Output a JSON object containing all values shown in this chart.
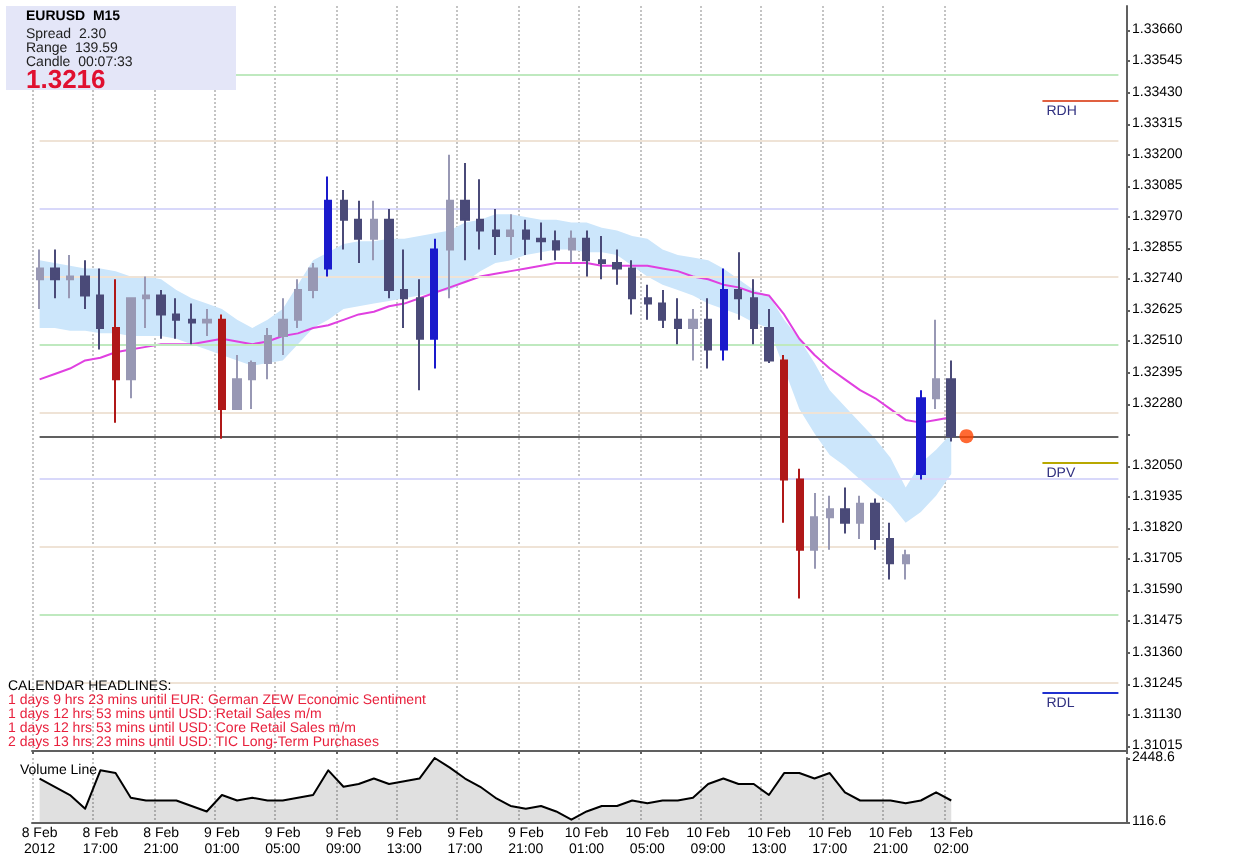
{
  "chart_data": [
    {
      "type": "candlestick",
      "title": "EURUSD  M15",
      "categories": [
        "8 Feb 2012",
        null,
        null,
        null,
        "8 Feb 17:00",
        null,
        null,
        null,
        "8 Feb 21:00",
        null,
        null,
        null,
        "9 Feb 01:00",
        null,
        null,
        null,
        "9 Feb 05:00",
        null,
        null,
        null,
        "9 Feb 09:00",
        null,
        null,
        null,
        "9 Feb 13:00",
        null,
        null,
        null,
        "9 Feb 17:00",
        null,
        null,
        null,
        "9 Feb 21:00",
        null,
        null,
        null,
        "10 Feb 01:00",
        null,
        null,
        null,
        "10 Feb 05:00",
        null,
        null,
        null,
        "10 Feb 09:00",
        null,
        null,
        null,
        "10 Feb 13:00",
        null,
        null,
        null,
        "10 Feb 17:00",
        null,
        null,
        null,
        "10 Feb 21:00",
        null,
        null,
        null,
        "13 Feb 02:00",
        null,
        null,
        null,
        null,
        null,
        null,
        null,
        null,
        null,
        null,
        null
      ],
      "ohlc": [
        [
          1.3274,
          1.3285,
          1.3263,
          1.3278
        ],
        [
          1.3278,
          1.3285,
          1.3267,
          1.3274
        ],
        [
          1.3274,
          1.3283,
          1.3267,
          1.3275
        ],
        [
          1.3275,
          1.3281,
          1.3263,
          1.3268
        ],
        [
          1.3268,
          1.3278,
          1.3248,
          1.3256
        ],
        [
          1.3256,
          1.3274,
          1.3221,
          1.3237
        ],
        [
          1.3237,
          1.3267,
          1.323,
          1.3267
        ],
        [
          1.3267,
          1.3275,
          1.3256,
          1.3268
        ],
        [
          1.3268,
          1.327,
          1.3252,
          1.3261
        ],
        [
          1.3261,
          1.3267,
          1.3252,
          1.3259
        ],
        [
          1.3259,
          1.3265,
          1.325,
          1.3258
        ],
        [
          1.3258,
          1.3263,
          1.3253,
          1.3259
        ],
        [
          1.3259,
          1.3261,
          1.3215,
          1.3226
        ],
        [
          1.3226,
          1.3246,
          1.3226,
          1.3237
        ],
        [
          1.3237,
          1.3244,
          1.3226,
          1.3243
        ],
        [
          1.3243,
          1.3256,
          1.3237,
          1.3253
        ],
        [
          1.3253,
          1.3267,
          1.3246,
          1.3259
        ],
        [
          1.3259,
          1.3274,
          1.3256,
          1.327
        ],
        [
          1.327,
          1.328,
          1.3267,
          1.3278
        ],
        [
          1.3278,
          1.3312,
          1.3275,
          1.3303
        ],
        [
          1.3303,
          1.3307,
          1.3285,
          1.3296
        ],
        [
          1.3296,
          1.3303,
          1.328,
          1.3289
        ],
        [
          1.3289,
          1.3303,
          1.3281,
          1.3296
        ],
        [
          1.3296,
          1.33,
          1.3267,
          1.327
        ],
        [
          1.327,
          1.3285,
          1.3256,
          1.3267
        ],
        [
          1.3267,
          1.3274,
          1.3233,
          1.3252
        ],
        [
          1.3252,
          1.3289,
          1.3241,
          1.3285
        ],
        [
          1.3285,
          1.332,
          1.3267,
          1.3303
        ],
        [
          1.3303,
          1.3317,
          1.3281,
          1.3296
        ],
        [
          1.3296,
          1.3311,
          1.3285,
          1.3292
        ],
        [
          1.3292,
          1.33,
          1.3283,
          1.329
        ],
        [
          1.329,
          1.3298,
          1.3283,
          1.3292
        ],
        [
          1.3292,
          1.3296,
          1.3283,
          1.3289
        ],
        [
          1.3289,
          1.3295,
          1.3281,
          1.3288
        ],
        [
          1.3288,
          1.3292,
          1.3281,
          1.3285
        ],
        [
          1.3285,
          1.3292,
          1.328,
          1.3289
        ],
        [
          1.3289,
          1.3292,
          1.3275,
          1.3281
        ],
        [
          1.3281,
          1.329,
          1.3274,
          1.328
        ],
        [
          1.328,
          1.3285,
          1.3272,
          1.3278
        ],
        [
          1.3278,
          1.3281,
          1.3261,
          1.3267
        ],
        [
          1.3267,
          1.3272,
          1.3259,
          1.3265
        ],
        [
          1.3265,
          1.327,
          1.3256,
          1.3259
        ],
        [
          1.3259,
          1.3267,
          1.325,
          1.3256
        ],
        [
          1.3256,
          1.3263,
          1.3244,
          1.3259
        ],
        [
          1.3259,
          1.3267,
          1.3241,
          1.3248
        ],
        [
          1.3248,
          1.3278,
          1.3244,
          1.327
        ],
        [
          1.327,
          1.3284,
          1.3259,
          1.3267
        ],
        [
          1.3267,
          1.3274,
          1.325,
          1.3256
        ],
        [
          1.3256,
          1.3263,
          1.3243,
          1.3244
        ],
        [
          1.3244,
          1.3246,
          1.3184,
          1.32
        ],
        [
          1.32,
          1.3204,
          1.3156,
          1.3174
        ],
        [
          1.3174,
          1.3195,
          1.3167,
          1.3186
        ],
        [
          1.3186,
          1.3194,
          1.3174,
          1.3189
        ],
        [
          1.3189,
          1.3197,
          1.318,
          1.3184
        ],
        [
          1.3184,
          1.3194,
          1.3178,
          1.3191
        ],
        [
          1.3191,
          1.3193,
          1.3174,
          1.3178
        ],
        [
          1.3178,
          1.3184,
          1.3163,
          1.3169
        ],
        [
          1.3169,
          1.3174,
          1.3163,
          1.3172
        ],
        [
          1.3202,
          1.3233,
          1.32,
          1.323
        ],
        [
          1.323,
          1.3259,
          1.3226,
          1.3237
        ],
        [
          1.3237,
          1.3244,
          1.3214,
          1.3216
        ],
        null,
        null,
        null,
        null,
        null,
        null,
        null,
        null,
        null,
        null,
        null
      ],
      "colors": [
        "#9898b4",
        "#4a4a78",
        "#9898b4",
        "#4a4a78",
        "#4a4a78",
        "#b01818",
        "#9898b4",
        "#9898b4",
        "#4a4a78",
        "#4a4a78",
        "#4a4a78",
        "#9898b4",
        "#b01818",
        "#9898b4",
        "#9898b4",
        "#9898b4",
        "#9898b4",
        "#9898b4",
        "#9898b4",
        "#1a1acc",
        "#4a4a78",
        "#4a4a78",
        "#9898b4",
        "#4a4a78",
        "#4a4a78",
        "#4a4a78",
        "#1a1acc",
        "#9898b4",
        "#4a4a78",
        "#4a4a78",
        "#4a4a78",
        "#9898b4",
        "#4a4a78",
        "#4a4a78",
        "#4a4a78",
        "#9898b4",
        "#4a4a78",
        "#4a4a78",
        "#4a4a78",
        "#4a4a78",
        "#4a4a78",
        "#4a4a78",
        "#4a4a78",
        "#9898b4",
        "#4a4a78",
        "#1a1acc",
        "#4a4a78",
        "#4a4a78",
        "#4a4a78",
        "#b01818",
        "#b01818",
        "#9898b4",
        "#9898b4",
        "#4a4a78",
        "#9898b4",
        "#4a4a78",
        "#4a4a78",
        "#9898b4",
        "#1a1acc",
        "#9898b4",
        "#4a4a78",
        null,
        null,
        null,
        null,
        null,
        null,
        null,
        null,
        null,
        null,
        null
      ],
      "series": [
        {
          "type": "line",
          "color": "#e040e0",
          "marker": "none",
          "values": [
            1.3237,
            1.3239,
            1.3241,
            1.3244,
            1.3245,
            1.3247,
            1.3248,
            1.3249,
            1.325,
            1.325,
            1.325,
            1.3251,
            1.3252,
            1.3251,
            1.325,
            1.3251,
            1.3253,
            1.3254,
            1.3256,
            1.3257,
            1.3259,
            1.3261,
            1.3262,
            1.3264,
            1.3265,
            1.3267,
            1.3269,
            1.3271,
            1.3273,
            1.3275,
            1.3276,
            1.3277,
            1.3278,
            1.3279,
            1.328,
            1.328,
            1.328,
            1.3279,
            1.3279,
            1.3279,
            1.3279,
            1.3278,
            1.3277,
            1.3275,
            1.3274,
            1.3272,
            1.3271,
            1.3269,
            1.3268,
            1.3261,
            1.3252,
            1.3246,
            1.3241,
            1.3237,
            1.3233,
            1.323,
            1.3226,
            1.3222,
            1.3221,
            1.3222,
            1.3223,
            null,
            null,
            null,
            null,
            null,
            null,
            null,
            null,
            null,
            null,
            null
          ]
        },
        {
          "type": "line",
          "color": "#cce6fb",
          "values": [
            null,
            null,
            null,
            null,
            null,
            null,
            null,
            null,
            null,
            null,
            null,
            null,
            null,
            null,
            null,
            null,
            null,
            null,
            null,
            null,
            null,
            null,
            null,
            null,
            null,
            null,
            null,
            null,
            null,
            null,
            null,
            null,
            null,
            null,
            null,
            null,
            null,
            null,
            null,
            null,
            null,
            null,
            null,
            null,
            null,
            null,
            null,
            null,
            null,
            null,
            null,
            null,
            null,
            null,
            null,
            null,
            null,
            null,
            null,
            null,
            null,
            null,
            null,
            null,
            null,
            null,
            null,
            null,
            null,
            null,
            null,
            null
          ],
          "lower": [
            1.3256,
            1.3256,
            1.3255,
            1.3255,
            1.3254,
            1.3254,
            1.3253,
            1.3253,
            1.3253,
            1.3252,
            1.325,
            1.3248,
            1.3246,
            1.3244,
            1.3242,
            1.3243,
            1.3244,
            1.325,
            1.3256,
            1.3259,
            1.3263,
            1.3264,
            1.3265,
            1.3266,
            1.3267,
            1.3268,
            1.3269,
            1.327,
            1.3273,
            1.3277,
            1.328,
            1.3281,
            1.3283,
            1.3284,
            1.3285,
            1.3285,
            1.3284,
            1.3284,
            1.3283,
            1.3279,
            1.3275,
            1.3272,
            1.327,
            1.3268,
            1.3265,
            1.3263,
            1.3261,
            1.3258,
            1.3256,
            1.3241,
            1.3226,
            1.3217,
            1.3209,
            1.3205,
            1.32,
            1.3195,
            1.3191,
            1.3184,
            1.3188,
            1.3194,
            1.3202,
            null,
            null,
            null,
            null,
            null,
            null,
            null,
            null,
            null,
            null,
            null
          ],
          "upper": [
            1.3281,
            1.328,
            1.3279,
            1.3278,
            1.3278,
            1.3277,
            1.3275,
            1.3275,
            1.3274,
            1.327,
            1.3267,
            1.3265,
            1.3263,
            1.3259,
            1.3256,
            1.3259,
            1.3263,
            1.3272,
            1.3281,
            1.3284,
            1.3287,
            1.3288,
            1.3288,
            1.3289,
            1.3289,
            1.329,
            1.3291,
            1.3292,
            1.3295,
            1.3296,
            1.3298,
            1.3298,
            1.3297,
            1.3296,
            1.3296,
            1.3295,
            1.3295,
            1.3293,
            1.3292,
            1.329,
            1.3289,
            1.3285,
            1.3283,
            1.3282,
            1.3281,
            1.3278,
            1.3274,
            1.327,
            1.3268,
            1.3259,
            1.3252,
            1.3243,
            1.3233,
            1.3227,
            1.3221,
            1.3215,
            1.3208,
            1.3197,
            1.3206,
            1.3211,
            1.3217,
            null,
            null,
            null,
            null,
            null,
            null,
            null,
            null,
            null,
            null,
            null
          ]
        },
        {
          "type": "scatter",
          "color": "#ff4400",
          "marker": "circle",
          "values": [
            null,
            null,
            null,
            null,
            null,
            null,
            null,
            null,
            null,
            null,
            null,
            null,
            null,
            null,
            null,
            null,
            null,
            null,
            null,
            null,
            null,
            null,
            null,
            null,
            null,
            null,
            null,
            null,
            null,
            null,
            null,
            null,
            null,
            null,
            null,
            null,
            null,
            null,
            null,
            null,
            null,
            null,
            null,
            null,
            null,
            null,
            null,
            null,
            null,
            null,
            null,
            null,
            null,
            null,
            null,
            null,
            null,
            null,
            null,
            null,
            null,
            1.3216,
            null,
            null,
            null,
            null,
            null,
            null,
            null,
            null,
            null,
            null
          ]
        }
      ],
      "ylim": [
        1.31,
        1.3375
      ],
      "yticks": [
        1.31015,
        {
          "value": 1.3113,
          "label": "1.31130"
        },
        1.31245,
        {
          "value": 1.3136,
          "label": "1.31360"
        },
        1.31475,
        {
          "value": 1.3159,
          "label": "1.31590"
        },
        1.31705,
        {
          "value": 1.3182,
          "label": "1.31820"
        },
        1.31935,
        {
          "value": 1.3205,
          "label": "1.32050"
        },
        {
          "value": 1.32165,
          "label": null
        },
        {
          "value": 1.3228,
          "label": "1.32280"
        },
        1.32395,
        {
          "value": 1.3251,
          "label": "1.32510"
        },
        1.32625,
        {
          "value": 1.3274,
          "label": "1.32740"
        },
        1.32855,
        {
          "value": 1.3297,
          "label": "1.32970"
        },
        1.33085,
        {
          "value": 1.332,
          "label": "1.33200"
        },
        1.33315,
        {
          "value": 1.3343,
          "label": "1.33430"
        },
        1.33545,
        {
          "value": 1.3366,
          "label": "1.33660"
        }
      ],
      "grid": "x",
      "ref_lines": [
        {
          "axis": "y",
          "value": 1.335,
          "color": "#bfe9bf"
        },
        {
          "axis": "y",
          "value": 1.3325,
          "color": "#efe3d6"
        },
        {
          "axis": "y",
          "value": 1.33,
          "color": "#d8d8fa"
        },
        {
          "axis": "y",
          "value": 1.3275,
          "color": "#efe3d6"
        },
        {
          "axis": "y",
          "value": 1.325,
          "color": "#bfe9bf"
        },
        {
          "axis": "y",
          "value": 1.3225,
          "color": "#efe3d6"
        },
        {
          "axis": "y",
          "value": 1.32,
          "color": "#d8d8fa"
        },
        {
          "axis": "y",
          "value": 1.3175,
          "color": "#efe3d6"
        },
        {
          "axis": "y",
          "value": 1.315,
          "color": "#bfe9bf"
        },
        {
          "axis": "y",
          "value": 1.3125,
          "color": "#efe3d6"
        },
        {
          "axis": "y",
          "value": 1.3216,
          "color": "#606060"
        },
        {
          "axis": "y",
          "value": 1.334,
          "label": "RDH",
          "color": "#e06040"
        },
        {
          "axis": "y",
          "value": 1.3206,
          "label": "DPV",
          "color": "#b8a800"
        },
        {
          "axis": "y",
          "value": 1.3121,
          "label": "RDL",
          "color": "#2030d0"
        }
      ],
      "annotations": [
        "Spread  2.30",
        "Range  139.59",
        "Candle  00:07:33",
        "1.3216",
        "CALENDAR HEADLINES:",
        "1 days 9 hrs 23 mins until EUR: German ZEW Economic Sentiment",
        "1 days 12 hrs 53 mins until USD: Retail Sales m/m",
        "1 days 12 hrs 53 mins until USD: Core Retail Sales m/m",
        "2 days 13 hrs 23 mins until USD: TIC Long-Term Purchases"
      ]
    },
    {
      "type": "area",
      "title": "Volume Line",
      "tick_labels": "y",
      "categories": [
        null,
        null,
        null,
        null,
        null,
        null,
        null,
        null,
        null,
        null,
        null,
        null,
        null,
        null,
        null,
        null,
        null,
        null,
        null,
        null,
        null,
        null,
        null,
        null,
        null,
        null,
        null,
        null,
        null,
        null,
        null,
        null,
        null,
        null,
        null,
        null,
        null,
        null,
        null,
        null,
        null,
        null,
        null,
        null,
        null,
        null,
        null,
        null,
        null,
        null,
        null,
        null,
        null,
        null,
        null,
        null,
        null,
        null,
        null,
        null,
        null,
        null,
        null,
        null,
        null,
        null,
        null,
        null,
        null,
        null,
        null,
        null
      ],
      "series": [
        {
          "color": "#000000",
          "values": [
            1700,
            1400,
            1100,
            600,
            2000,
            1900,
            1000,
            900,
            900,
            900,
            700,
            500,
            1100,
            900,
            1000,
            900,
            900,
            1000,
            1100,
            2000,
            1400,
            1500,
            1700,
            1500,
            1600,
            1700,
            2448.6,
            2100,
            1700,
            1400,
            1000,
            700,
            600,
            700,
            500,
            200,
            500,
            700,
            700,
            900,
            800,
            900,
            900,
            1000,
            1500,
            1700,
            1500,
            1500,
            1100,
            1900,
            1900,
            1700,
            1900,
            1200,
            900,
            900,
            900,
            800,
            900,
            1200,
            900,
            null,
            null,
            null,
            null,
            null,
            null,
            null,
            null,
            null,
            null,
            null
          ]
        }
      ],
      "ylim": [
        116.6,
        2448.6
      ],
      "yticks": [
        116.6,
        2448.6
      ],
      "grid": "x",
      "marker": "none"
    }
  ]
}
